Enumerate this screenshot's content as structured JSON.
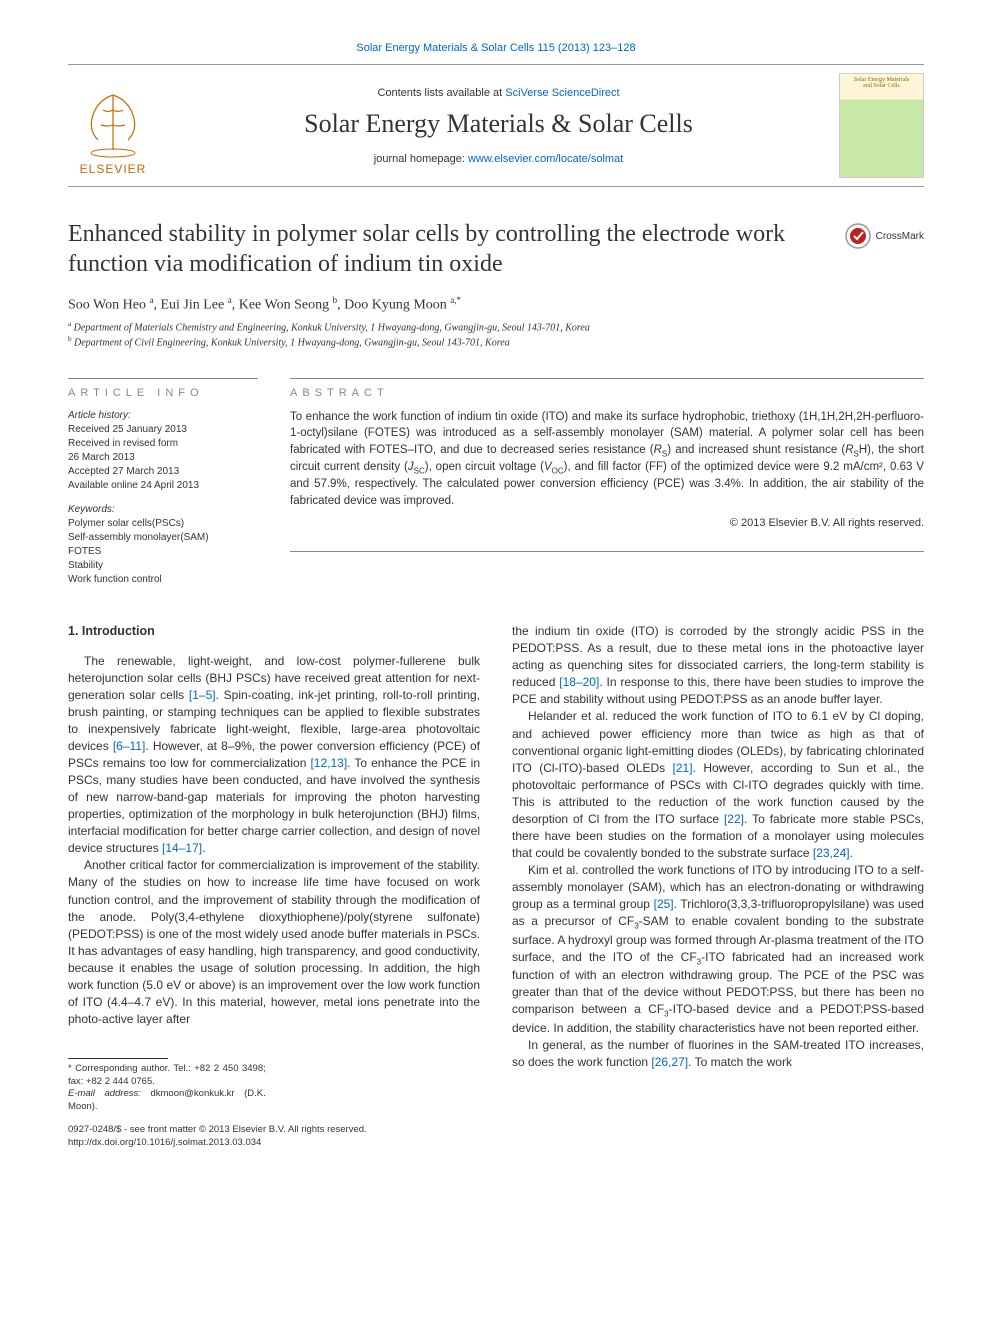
{
  "header": {
    "journal_ref_link": "Solar Energy Materials & Solar Cells 115 (2013) 123–128",
    "contents_prefix": "Contents lists available at ",
    "contents_link": "SciVerse ScienceDirect",
    "journal_title": "Solar Energy Materials & Solar Cells",
    "homepage_prefix": "journal homepage: ",
    "homepage_link": "www.elsevier.com/locate/solmat",
    "publisher": "ELSEVIER",
    "cover_label1": "Solar Energy Materials",
    "cover_label2": "and Solar Cells"
  },
  "crossmark": {
    "label": "CrossMark"
  },
  "title": "Enhanced stability in polymer solar cells by controlling the electrode work function via modification of indium tin oxide",
  "authors_html": "Soo Won Heo <sup>a</sup>, Eui Jin Lee <sup>a</sup>, Kee Won Seong <sup>b</sup>, Doo Kyung Moon <sup>a,*</sup>",
  "affiliations": {
    "a": "Department of Materials Chemistry and Engineering, Konkuk University, 1 Hwayang-dong, Gwangjin-gu, Seoul 143-701, Korea",
    "b": "Department of Civil Engineering, Konkuk University, 1 Hwayang-dong, Gwangjin-gu, Seoul 143-701, Korea"
  },
  "info": {
    "heading": "ARTICLE INFO",
    "history_label": "Article history:",
    "history": {
      "received": "Received 25 January 2013",
      "revised1": "Received in revised form",
      "revised2": "26 March 2013",
      "accepted": "Accepted 27 March 2013",
      "online": "Available online 24 April 2013"
    },
    "keywords_label": "Keywords:",
    "keywords": [
      "Polymer solar cells(PSCs)",
      "Self-assembly monolayer(SAM)",
      "FOTES",
      "Stability",
      "Work function control"
    ]
  },
  "abstract": {
    "heading": "ABSTRACT",
    "text": "To enhance the work function of indium tin oxide (ITO) and make its surface hydrophobic, triethoxy (1H,1H,2H,2H-perfluoro-1-octyl)silane (FOTES) was introduced as a self-assembly monolayer (SAM) material. A polymer solar cell has been fabricated with FOTES–ITO, and due to decreased series resistance (R_S) and increased shunt resistance (R_SH), the short circuit current density (J_SC), open circuit voltage (V_OC), and fill factor (FF) of the optimized device were 9.2 mA/cm², 0.63 V and 57.9%, respectively. The calculated power conversion efficiency (PCE) was 3.4%. In addition, the air stability of the fabricated device was improved.",
    "copyright": "© 2013 Elsevier B.V. All rights reserved."
  },
  "body": {
    "section_heading": "1.  Introduction",
    "left_p1": "The renewable, light-weight, and low-cost polymer-fullerene bulk heterojunction solar cells (BHJ PSCs) have received great attention for next-generation solar cells [1–5]. Spin-coating, ink-jet printing, roll-to-roll printing, brush painting, or stamping techniques can be applied to flexible substrates to inexpensively fabricate light-weight, flexible, large-area photovoltaic devices [6–11]. However, at 8–9%, the power conversion efficiency (PCE) of PSCs remains too low for commercialization [12,13]. To enhance the PCE in PSCs, many studies have been conducted, and have involved the synthesis of new narrow-band-gap materials for improving the photon harvesting properties, optimization of the morphology in bulk heterojunction (BHJ) films, interfacial modification for better charge carrier collection, and design of novel device structures [14–17].",
    "left_p2": "Another critical factor for commercialization is improvement of the stability. Many of the studies on how to increase life time have focused on work function control, and the improvement of stability through the modification of the anode. Poly(3,4-ethylene dioxythiophene)/poly(styrene sulfonate) (PEDOT:PSS) is one of the most widely used anode buffer materials in PSCs. It has advantages of easy handling, high transparency, and good conductivity, because it enables the usage of solution processing. In addition, the high work function (5.0 eV or above) is an improvement over the low work function of ITO (4.4–4.7 eV). In this material, however, metal ions penetrate into the photo-active layer after",
    "right_p1": "the indium tin oxide (ITO) is corroded by the strongly acidic PSS in the PEDOT:PSS. As a result, due to these metal ions in the photoactive layer acting as quenching sites for dissociated carriers, the long-term stability is reduced [18–20]. In response to this, there have been studies to improve the PCE and stability without using PEDOT:PSS as an anode buffer layer.",
    "right_p2": "Helander et al. reduced the work function of ITO to 6.1 eV by Cl doping, and achieved power efficiency more than twice as high as that of conventional organic light-emitting diodes (OLEDs), by fabricating chlorinated ITO (Cl-ITO)-based OLEDs [21]. However, according to Sun et al., the photovoltaic performance of PSCs with Cl-ITO degrades quickly with time. This is attributed to the reduction of the work function caused by the desorption of Cl from the ITO surface [22]. To fabricate more stable PSCs, there have been studies on the formation of a monolayer using molecules that could be covalently bonded to the substrate surface [23,24].",
    "right_p3": "Kim et al. controlled the work functions of ITO by introducing ITO to a self-assembly monolayer (SAM), which has an electron-donating or withdrawing group as a terminal group [25]. Trichloro(3,3,3-trifluoropropylsilane) was used as a precursor of CF₃-SAM to enable covalent bonding to the substrate surface. A hydroxyl group was formed through Ar-plasma treatment of the ITO surface, and the ITO of the CF₃-ITO fabricated had an increased work function of with an electron withdrawing group. The PCE of the PSC was greater than that of the device without PEDOT:PSS, but there has been no comparison between a CF₃-ITO-based device and a PEDOT:PSS-based device. In addition, the stability characteristics have not been reported either.",
    "right_p4": "In general, as the number of fluorines in the SAM-treated ITO increases, so does the work function [26,27]. To match the work"
  },
  "footer": {
    "corr_author": "* Corresponding author. Tel.: +82 2 450 3498; fax: +82 2 444 0765.",
    "email_label": "E-mail address:",
    "email": "dkmoon@konkuk.kr (D.K. Moon).",
    "issn": "0927-0248/$ - see front matter © 2013 Elsevier B.V. All rights reserved.",
    "doi": "http://dx.doi.org/10.1016/j.solmat.2013.03.034"
  },
  "colors": {
    "link": "#0066cc",
    "publisher": "#cc6600",
    "heading_gray": "#888888",
    "text": "#333333"
  }
}
